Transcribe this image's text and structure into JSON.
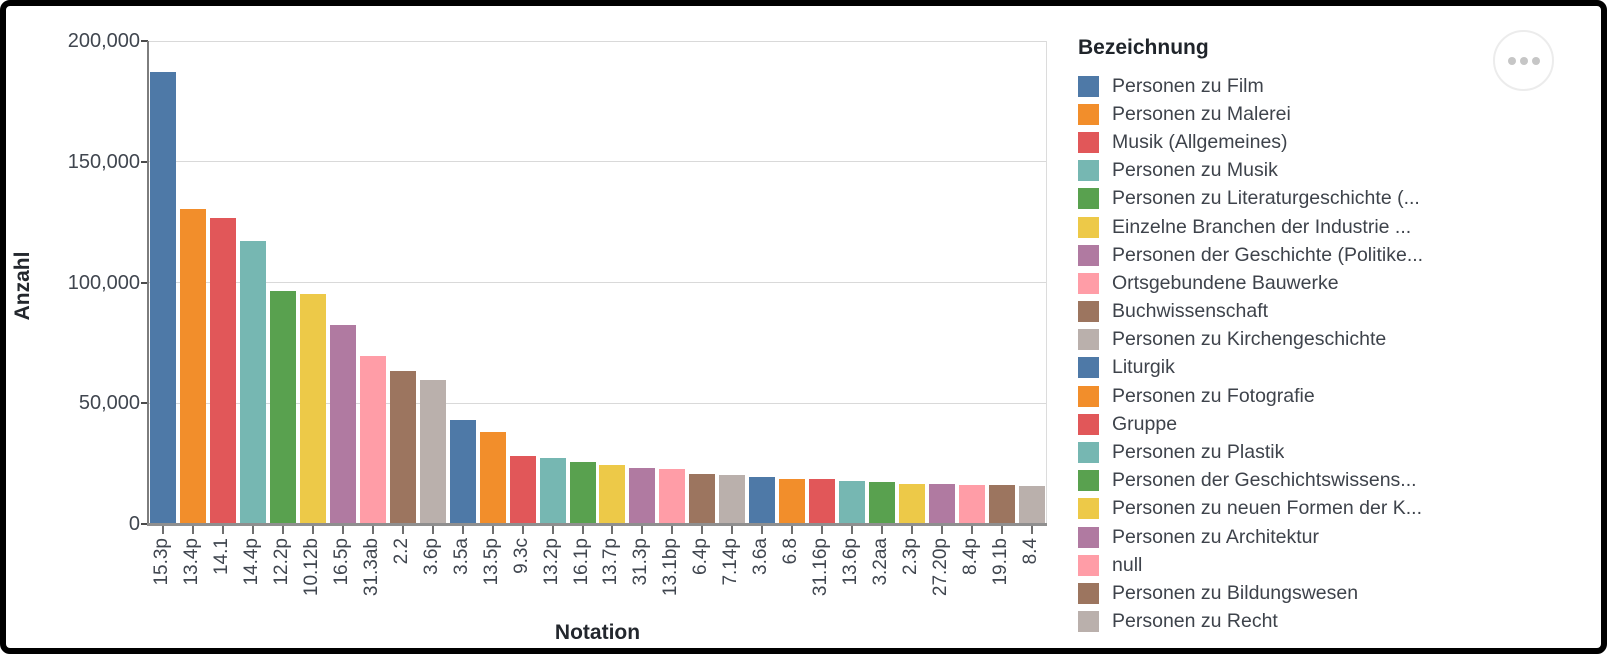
{
  "chart_data": {
    "type": "bar",
    "title": "",
    "xlabel": "Notation",
    "ylabel": "Anzahl",
    "ylim": [
      0,
      200000
    ],
    "yticks": [
      0,
      50000,
      100000,
      150000,
      200000
    ],
    "ytick_labels": [
      "0",
      "50,000",
      "100,000",
      "150,000",
      "200,000"
    ],
    "grid": true,
    "legend_position": "right",
    "categories": [
      "15.3p",
      "13.4p",
      "14.1",
      "14.4p",
      "12.2p",
      "10.12b",
      "16.5p",
      "31.3ab",
      "2.2",
      "3.6p",
      "3.5a",
      "13.5p",
      "9.3c",
      "13.2p",
      "16.1p",
      "13.7p",
      "31.3p",
      "13.1bp",
      "6.4p",
      "7.14p",
      "3.6a",
      "6.8",
      "31.16p",
      "13.6p",
      "3.2aa",
      "2.3p",
      "27.20p",
      "8.4p",
      "19.1b",
      "8.4"
    ],
    "values": [
      187000,
      130500,
      126700,
      117000,
      96500,
      95400,
      82200,
      69500,
      63200,
      59800,
      43200,
      37900,
      28200,
      27500,
      25700,
      24500,
      23300,
      22900,
      20700,
      20300,
      19300,
      18600,
      18500,
      17600,
      17400,
      16700,
      16500,
      16300,
      16100,
      15800
    ],
    "palette": [
      "#4e79a7",
      "#f28e2b",
      "#e15759",
      "#76b7b2",
      "#59a14f",
      "#edc948",
      "#b07aa1",
      "#ff9da7",
      "#9c755f",
      "#bab0ac"
    ]
  },
  "legend": {
    "title": "Bezeichnung",
    "items": [
      {
        "label": "Personen zu Film",
        "color": "#4e79a7"
      },
      {
        "label": "Personen zu Malerei",
        "color": "#f28e2b"
      },
      {
        "label": "Musik (Allgemeines)",
        "color": "#e15759"
      },
      {
        "label": "Personen zu Musik",
        "color": "#76b7b2"
      },
      {
        "label": "Personen zu Literaturgeschichte (...",
        "color": "#59a14f"
      },
      {
        "label": "Einzelne Branchen der Industrie ...",
        "color": "#edc948"
      },
      {
        "label": "Personen der Geschichte (Politike...",
        "color": "#b07aa1"
      },
      {
        "label": "Ortsgebundene Bauwerke",
        "color": "#ff9da7"
      },
      {
        "label": "Buchwissenschaft",
        "color": "#9c755f"
      },
      {
        "label": "Personen zu Kirchengeschichte",
        "color": "#bab0ac"
      },
      {
        "label": "Liturgik",
        "color": "#4e79a7"
      },
      {
        "label": "Personen zu Fotografie",
        "color": "#f28e2b"
      },
      {
        "label": "Gruppe",
        "color": "#e15759"
      },
      {
        "label": "Personen zu Plastik",
        "color": "#76b7b2"
      },
      {
        "label": "Personen der Geschichtswissens...",
        "color": "#59a14f"
      },
      {
        "label": "Personen zu neuen Formen der K...",
        "color": "#edc948"
      },
      {
        "label": "Personen zu Architektur",
        "color": "#b07aa1"
      },
      {
        "label": "null",
        "color": "#ff9da7"
      },
      {
        "label": "Personen zu Bildungswesen",
        "color": "#9c755f"
      },
      {
        "label": "Personen zu Recht",
        "color": "#bab0ac"
      }
    ]
  },
  "menu": {
    "icon": "ellipsis-icon"
  }
}
